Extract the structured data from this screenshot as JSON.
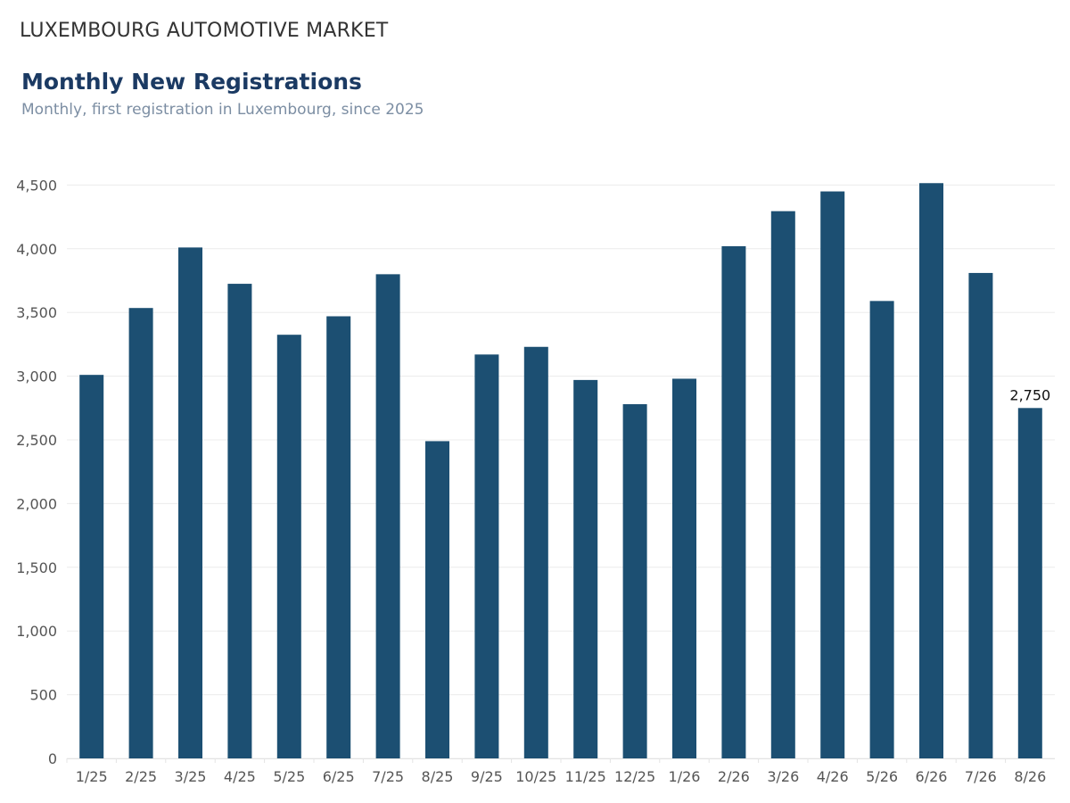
{
  "header": {
    "supertitle": "LUXEMBOURG AUTOMOTIVE MARKET",
    "title": "Monthly New Registrations",
    "subtitle": "Monthly, first registration in Luxembourg, since 2025"
  },
  "colors": {
    "bar": "#1c4f72",
    "grid": "#ececec",
    "axis_text": "#555555",
    "title": "#1b3a63",
    "subtitle": "#7c8ea3"
  },
  "chart_data": {
    "type": "bar",
    "title": "Monthly New Registrations",
    "subtitle": "Monthly, first registration in Luxembourg, since 2025",
    "xlabel": "",
    "ylabel": "",
    "categories": [
      "1/25",
      "2/25",
      "3/25",
      "4/25",
      "5/25",
      "6/25",
      "7/25",
      "8/25",
      "9/25",
      "10/25",
      "11/25",
      "12/25",
      "1/26",
      "2/26",
      "3/26",
      "4/26",
      "5/26",
      "6/26",
      "7/26",
      "8/26"
    ],
    "values": [
      3010,
      3535,
      4010,
      3725,
      3325,
      3470,
      3800,
      2490,
      3170,
      3230,
      2970,
      2780,
      2980,
      4020,
      4295,
      4450,
      3590,
      4515,
      3810,
      2750
    ],
    "yticks": [
      0,
      500,
      1000,
      1500,
      2000,
      2500,
      3000,
      3500,
      4000,
      4500
    ],
    "ytick_labels": [
      "0",
      "500",
      "1,000",
      "1,500",
      "2,000",
      "2,500",
      "3,000",
      "3,500",
      "4,000",
      "4,500"
    ],
    "ylim": [
      0,
      4750
    ],
    "grid": true,
    "legend": "none",
    "annotations": [
      {
        "category": "8/26",
        "value": 2750,
        "text": "2,750"
      }
    ]
  }
}
